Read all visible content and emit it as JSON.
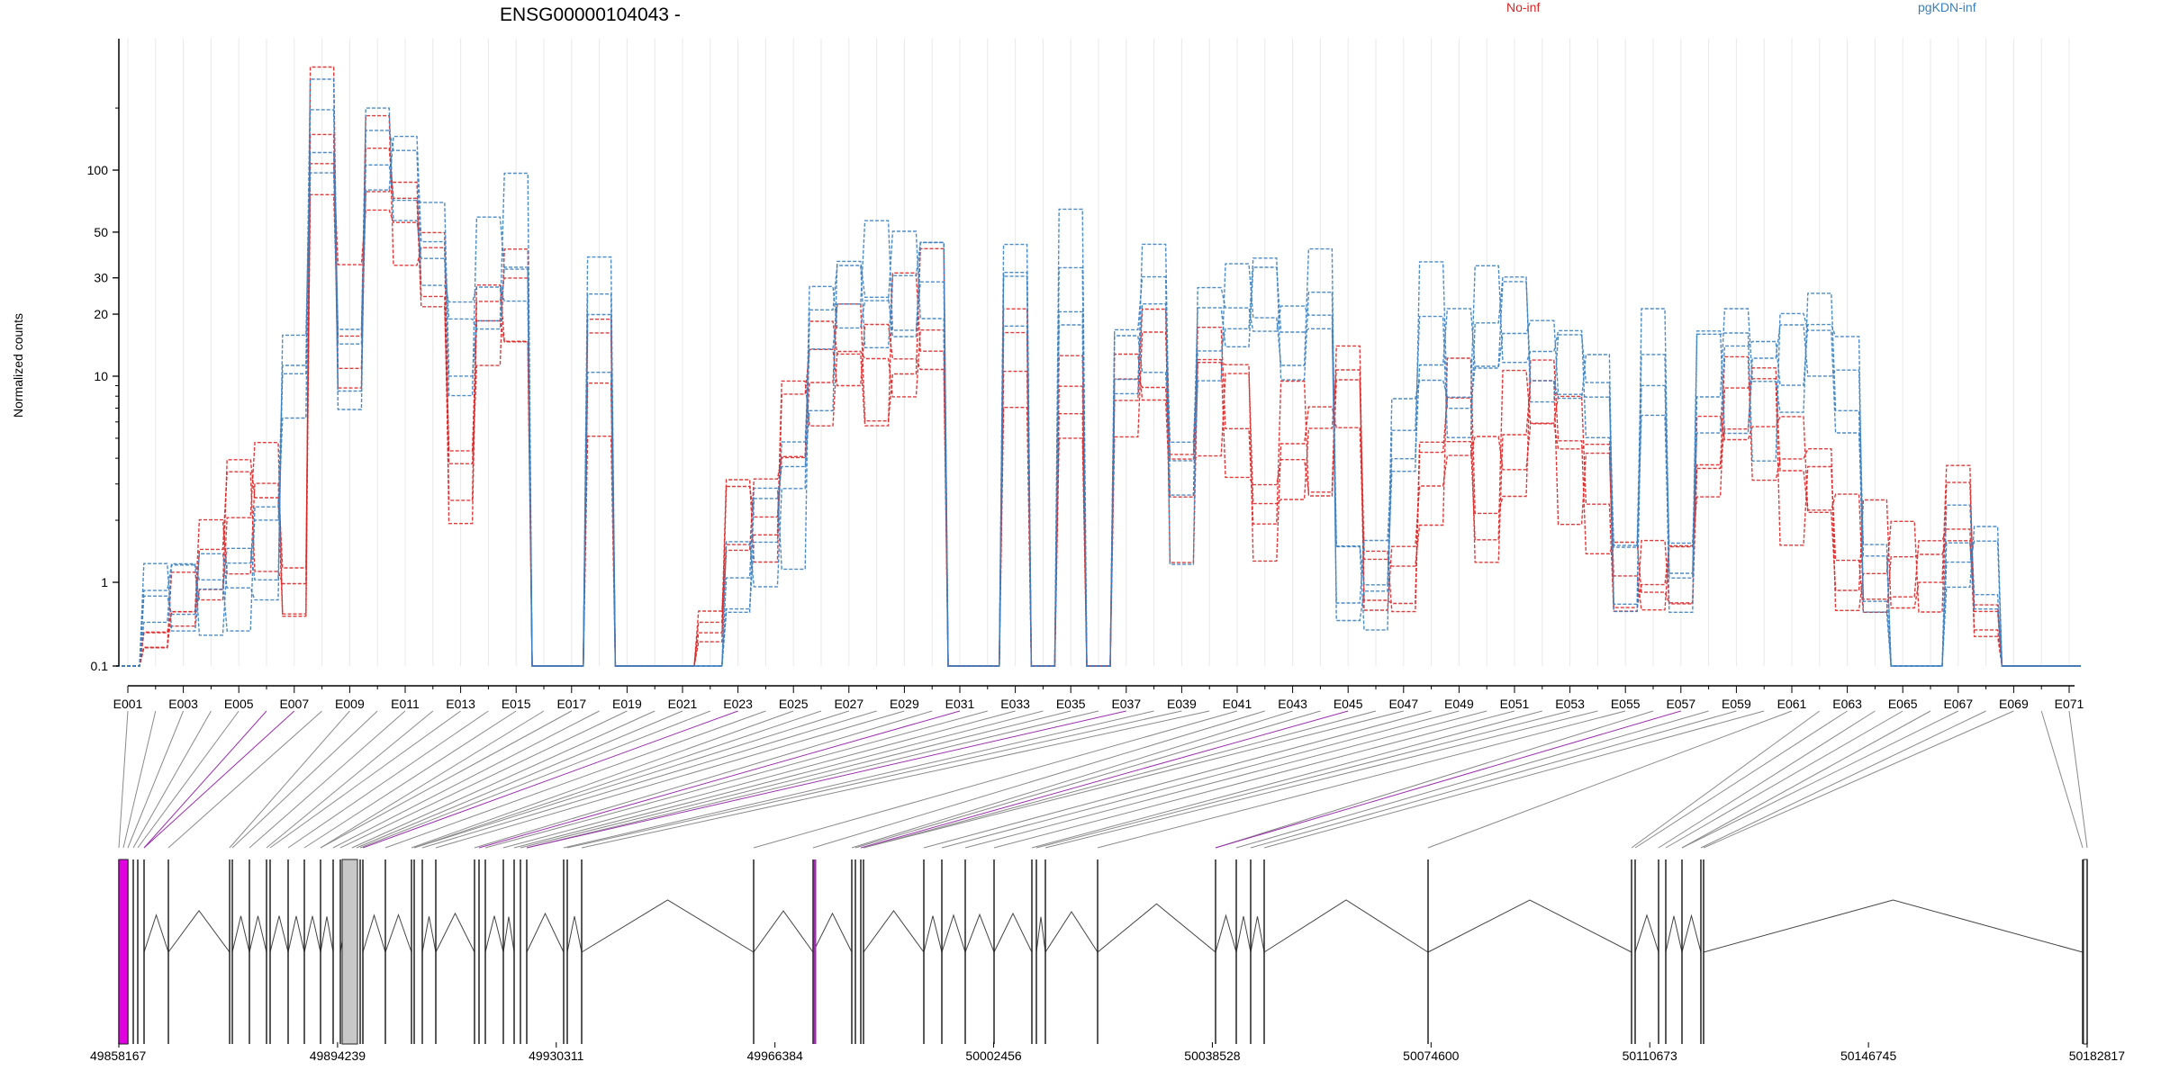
{
  "chart_data": {
    "type": "line",
    "title": "ENSG00000104043 -",
    "ylabel": "Normalized counts",
    "yscale": "log",
    "y_ticks": [
      0.1,
      1,
      10,
      20,
      30,
      50,
      100
    ],
    "y_tick_labels": [
      "0.1",
      "1",
      "10",
      "20",
      "30",
      "50",
      "100"
    ],
    "x_tick_labels": [
      "E001",
      "E003",
      "E005",
      "E007",
      "E009",
      "E011",
      "E013",
      "E015",
      "E017",
      "E019",
      "E021",
      "E023",
      "E025",
      "E027",
      "E029",
      "E031",
      "E033",
      "E035",
      "E037",
      "E039",
      "E041",
      "E043",
      "E045",
      "E047",
      "E049",
      "E051",
      "E053",
      "E055",
      "E057",
      "E059",
      "E061",
      "E063",
      "E065",
      "E067",
      "E069",
      "E071"
    ],
    "colors": {
      "no_inf": "#dc2626",
      "pgkdn_inf": "#3a7fc0",
      "purple": "#9b2fae",
      "magenta": "#e000e0",
      "gray_box": "#c8c8c8"
    },
    "legend": [
      {
        "name": "No-inf",
        "color": "#dc2626"
      },
      {
        "name": "pgKDN-inf",
        "color": "#3a7fc0"
      }
    ],
    "group_means": {
      "no_inf": [
        0.08,
        0.25,
        0.7,
        1.3,
        2.5,
        3,
        0.8,
        118,
        14,
        95,
        55,
        34,
        3,
        18,
        22,
        0.08,
        0.08,
        13,
        0.08,
        0.08,
        0.08,
        0.4,
        2,
        2,
        6,
        12,
        14,
        8,
        12,
        16,
        0.08,
        0.08,
        14,
        0.08,
        8,
        0.08,
        8,
        14,
        3,
        11,
        8,
        2,
        4,
        4,
        9,
        1,
        1,
        3,
        6,
        2,
        4,
        8,
        5,
        3,
        1,
        1,
        1,
        4,
        8,
        7,
        4,
        3,
        1,
        1,
        1,
        1,
        2.5,
        0.5,
        0.08,
        0.08,
        0.08
      ],
      "pgkdn_inf": [
        0.08,
        0.8,
        0.9,
        0.9,
        1,
        1.6,
        10,
        145,
        11,
        125,
        100,
        44,
        12,
        24,
        36,
        0.08,
        0.08,
        24,
        0.08,
        0.08,
        0.08,
        0.08,
        1,
        2,
        3,
        18,
        26,
        22,
        24,
        30,
        0.08,
        0.08,
        28,
        0.08,
        28,
        0.08,
        12,
        28,
        3,
        18,
        22,
        24,
        14,
        26,
        1,
        1,
        5,
        14,
        8,
        15,
        18,
        12,
        12,
        8,
        1,
        10,
        1,
        12,
        14,
        10,
        14,
        16,
        8,
        1,
        0.08,
        0.08,
        1.5,
        1,
        0.08,
        0.08,
        0.08
      ]
    },
    "genomic_ticks": [
      "49858167",
      "49894239",
      "49930311",
      "49966384",
      "50002456",
      "50038528",
      "50074600",
      "50110673",
      "50146745",
      "50182817"
    ],
    "genomic_range": [
      49858167,
      50182817
    ]
  }
}
